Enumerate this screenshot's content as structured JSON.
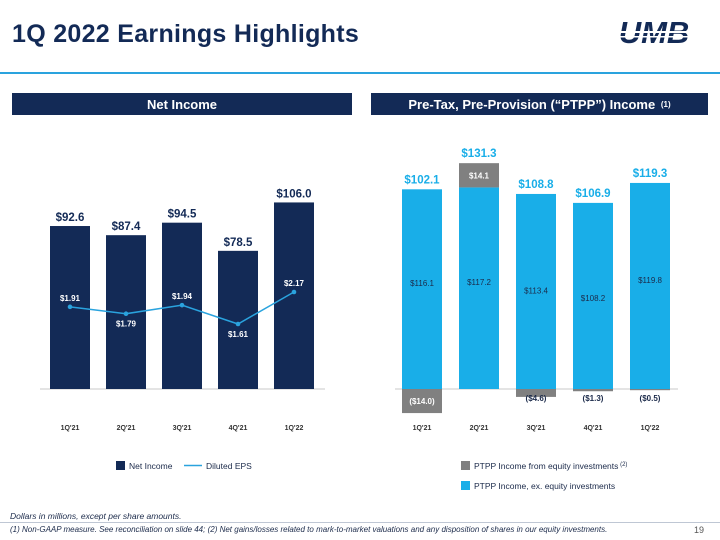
{
  "slide": {
    "title": "1Q 2022 Earnings Highlights",
    "logo_text": "UMB",
    "page_number": "19",
    "note": "Dollars in millions, except per share amounts.",
    "footnote": "(1) Non-GAAP measure. See reconciliation on slide 44; (2) Net gains/losses related to mark-to-market valuations and any disposition of shares in our equity investments."
  },
  "panels": {
    "left_title": "Net Income",
    "right_title": "Pre-Tax, Pre-Provision (“PTPP”) Income",
    "right_title_sup": "(1)"
  },
  "colors": {
    "navy": "#132a56",
    "accent_blue": "#2aa3de",
    "ptpp_cyan": "#19aee8",
    "equity_gray": "#808080"
  },
  "chart_data": [
    {
      "type": "bar",
      "categories": [
        "1Q'21",
        "2Q'21",
        "3Q'21",
        "4Q'21",
        "1Q'22"
      ],
      "series": [
        {
          "name": "Net Income",
          "values": [
            92.6,
            87.4,
            94.5,
            78.5,
            106.0
          ],
          "labels": [
            "$92.6",
            "$87.4",
            "$94.5",
            "$78.5",
            "$106.0"
          ]
        },
        {
          "name": "Diluted EPS",
          "type": "line",
          "values": [
            1.91,
            1.79,
            1.94,
            1.61,
            2.17
          ],
          "labels": [
            "$1.91",
            "$1.79",
            "$1.94",
            "$1.61",
            "$2.17"
          ]
        }
      ],
      "legend": [
        "Net Income",
        "Diluted EPS"
      ]
    },
    {
      "type": "bar",
      "stacked": true,
      "categories": [
        "1Q'21",
        "2Q'21",
        "3Q'21",
        "4Q'21",
        "1Q'22"
      ],
      "series": [
        {
          "name": "PTPP Income, ex. equity investments",
          "values": [
            116.1,
            117.2,
            113.4,
            108.2,
            119.8
          ],
          "labels": [
            "$116.1",
            "$117.2",
            "$113.4",
            "$108.2",
            "$119.8"
          ]
        },
        {
          "name": "PTPP Income from equity investments",
          "name_sup": "(2)",
          "values": [
            -14.0,
            14.1,
            -4.6,
            -1.3,
            -0.5
          ],
          "labels": [
            "($14.0)",
            "$14.1",
            "($4.6)",
            "($1.3)",
            "($0.5)"
          ]
        }
      ],
      "totals": [
        102.1,
        131.3,
        108.8,
        106.9,
        119.3
      ],
      "total_labels": [
        "$102.1",
        "$131.3",
        "$108.8",
        "$106.9",
        "$119.3"
      ],
      "legend": [
        "PTPP Income from equity investments",
        "PTPP Income, ex. equity investments"
      ]
    }
  ]
}
